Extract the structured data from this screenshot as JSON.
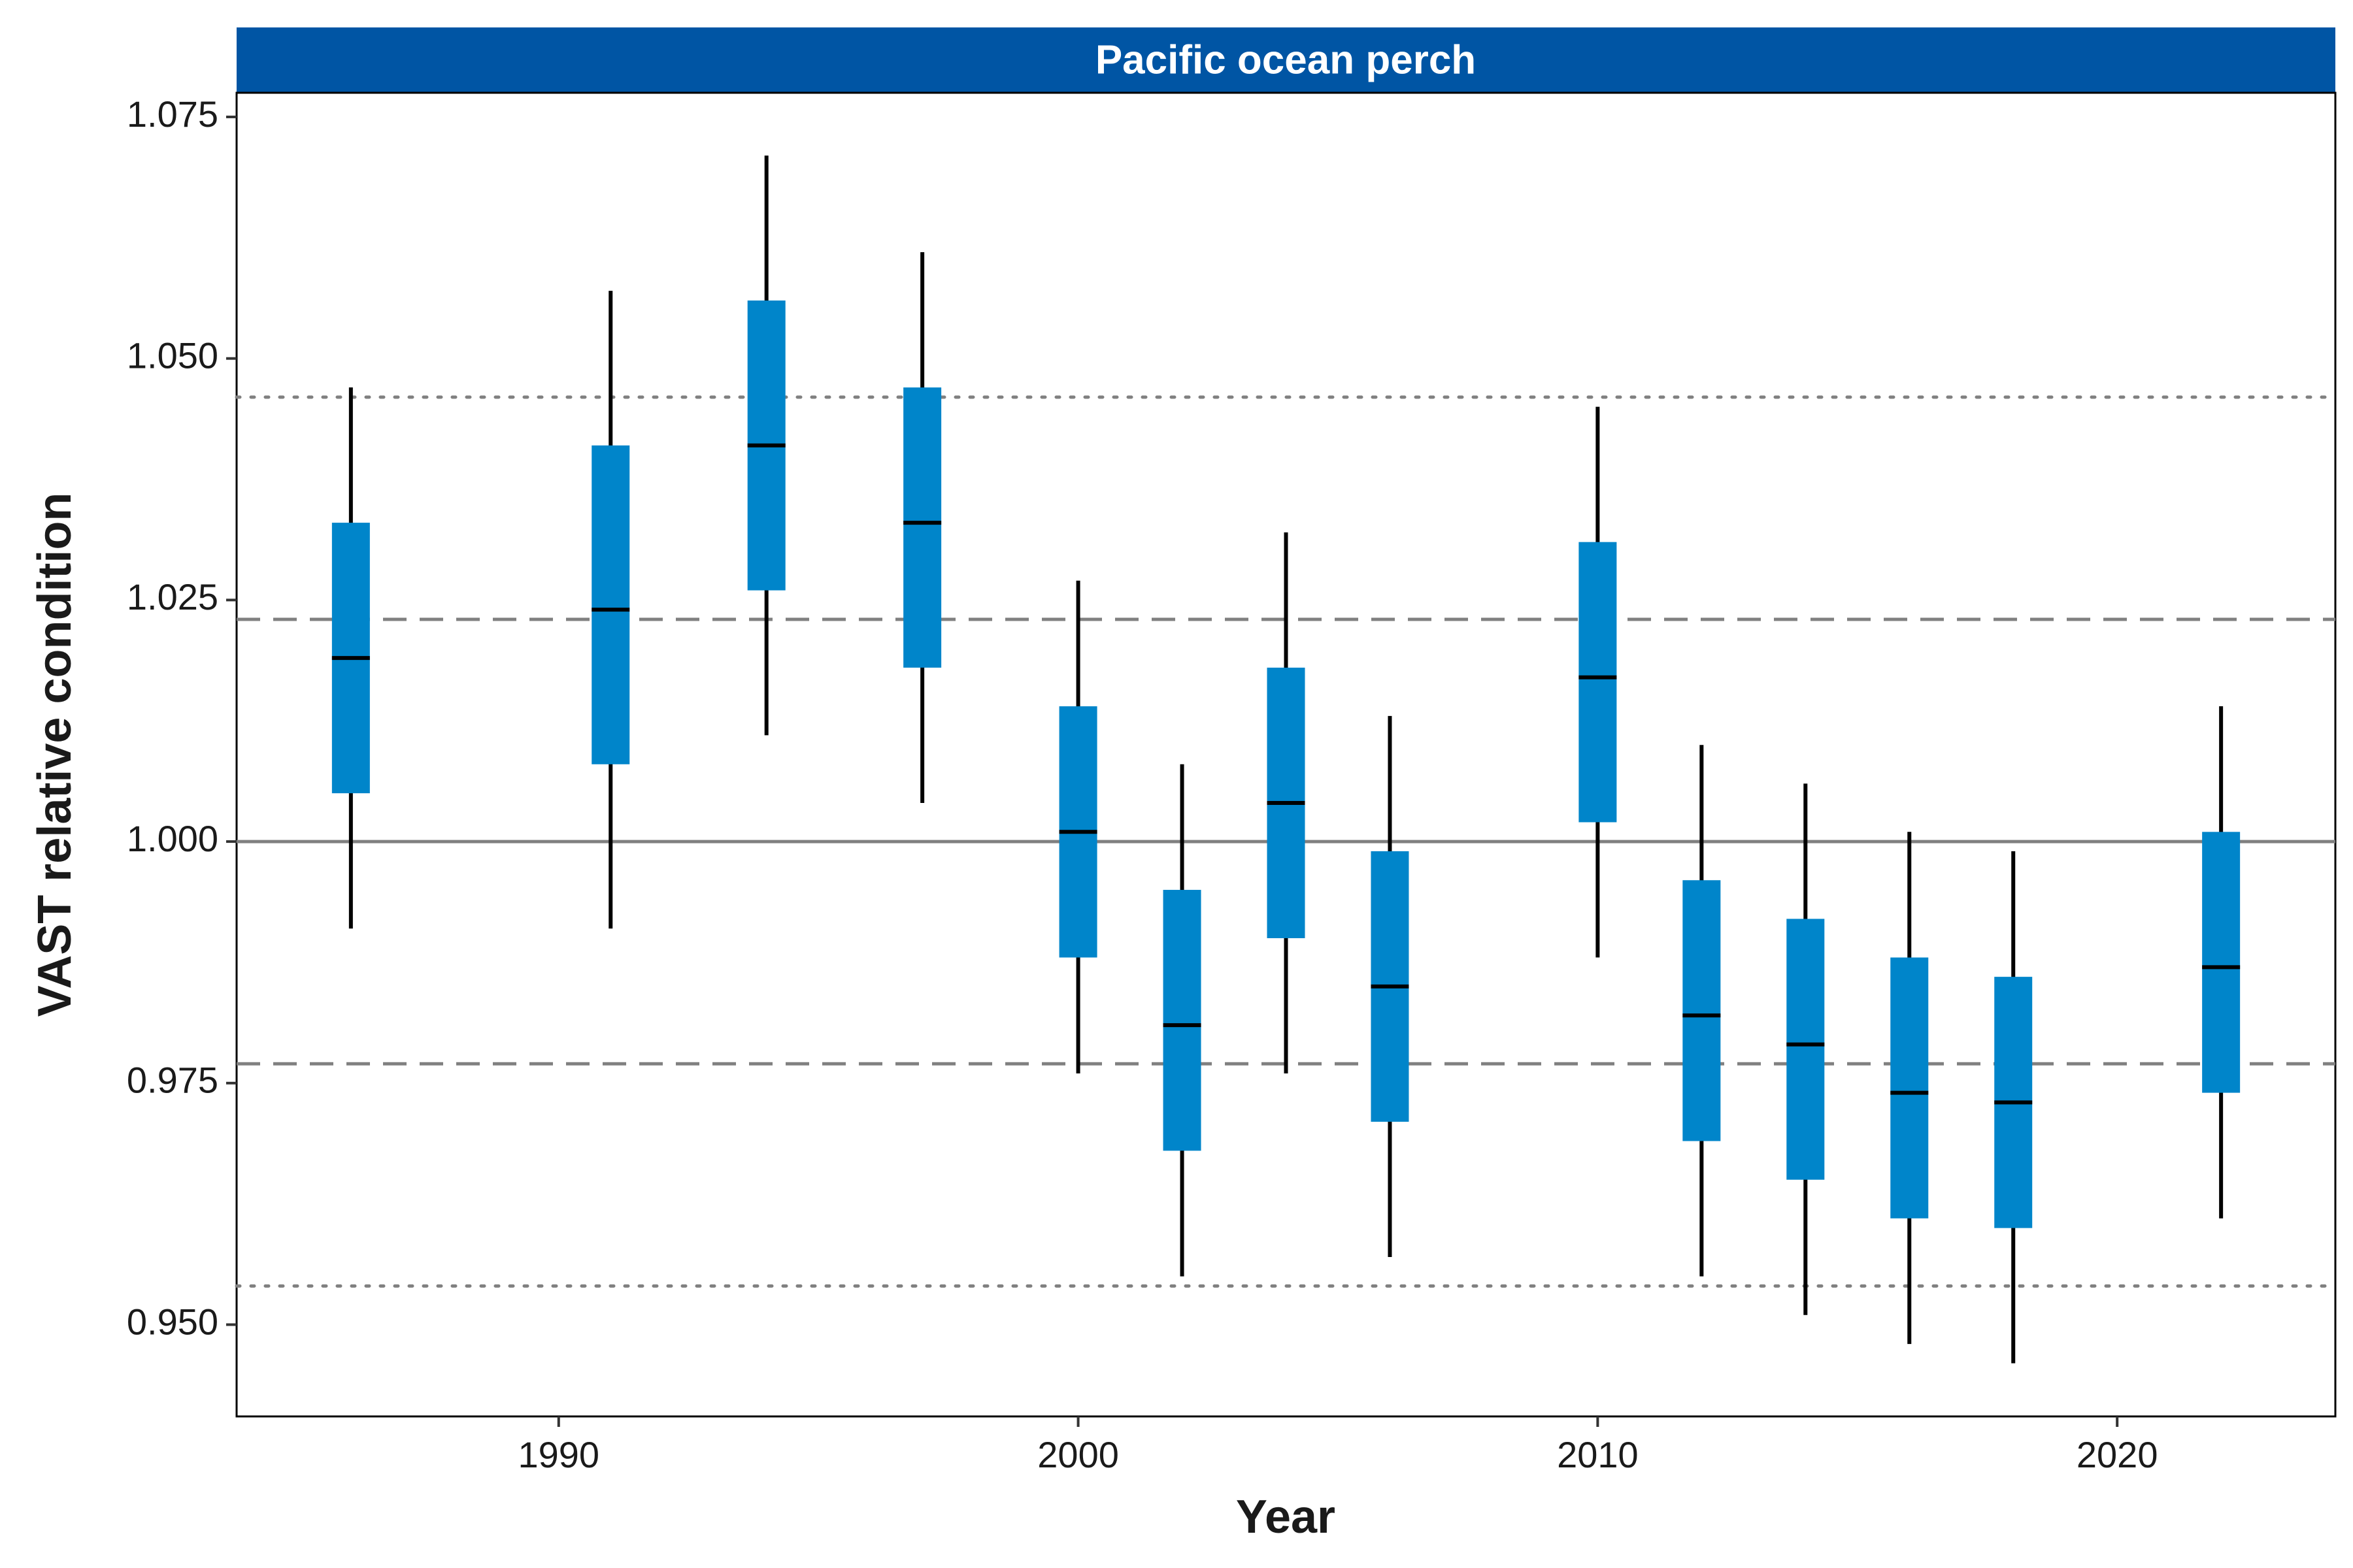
{
  "colors": {
    "strip_fill": "#0055A4",
    "strip_text": "#ffffff",
    "box_fill": "#0085CA",
    "whisker": "#000000",
    "median": "#000000",
    "reference_line": "#808080",
    "panel_border": "#000000"
  },
  "chart_data": {
    "type": "box",
    "panel_title": "Pacific ocean perch",
    "xlabel": "Year",
    "ylabel": "VAST relative condition",
    "xlim": [
      1983.8,
      2024.2
    ],
    "ylim": [
      0.9405,
      1.0775
    ],
    "x_ticks": [
      1990,
      2000,
      2010,
      2020
    ],
    "y_ticks": [
      0.95,
      0.975,
      1.0,
      1.025,
      1.05,
      1.075
    ],
    "x_tick_labels": [
      "1990",
      "2000",
      "2010",
      "2020"
    ],
    "y_tick_labels": [
      "0.950",
      "0.975",
      "1.000",
      "1.025",
      "1.050",
      "1.075"
    ],
    "reference_lines": [
      {
        "y": 1.0,
        "style": "solid"
      },
      {
        "y": 1.023,
        "style": "dashed"
      },
      {
        "y": 0.977,
        "style": "dashed"
      },
      {
        "y": 1.046,
        "style": "dotted"
      },
      {
        "y": 0.954,
        "style": "dotted"
      }
    ],
    "boxes": [
      {
        "year": 1986,
        "low": 0.991,
        "q1": 1.005,
        "median": 1.019,
        "q3": 1.033,
        "high": 1.047
      },
      {
        "year": 1991,
        "low": 0.991,
        "q1": 1.008,
        "median": 1.024,
        "q3": 1.041,
        "high": 1.057
      },
      {
        "year": 1994,
        "low": 1.011,
        "q1": 1.026,
        "median": 1.041,
        "q3": 1.056,
        "high": 1.071
      },
      {
        "year": 1997,
        "low": 1.004,
        "q1": 1.018,
        "median": 1.033,
        "q3": 1.047,
        "high": 1.061
      },
      {
        "year": 2000,
        "low": 0.976,
        "q1": 0.988,
        "median": 1.001,
        "q3": 1.014,
        "high": 1.027
      },
      {
        "year": 2002,
        "low": 0.955,
        "q1": 0.968,
        "median": 0.981,
        "q3": 0.995,
        "high": 1.008
      },
      {
        "year": 2004,
        "low": 0.976,
        "q1": 0.99,
        "median": 1.004,
        "q3": 1.018,
        "high": 1.032
      },
      {
        "year": 2006,
        "low": 0.957,
        "q1": 0.971,
        "median": 0.985,
        "q3": 0.999,
        "high": 1.013
      },
      {
        "year": 2010,
        "low": 0.988,
        "q1": 1.002,
        "median": 1.017,
        "q3": 1.031,
        "high": 1.045
      },
      {
        "year": 2012,
        "low": 0.955,
        "q1": 0.969,
        "median": 0.982,
        "q3": 0.996,
        "high": 1.01
      },
      {
        "year": 2014,
        "low": 0.951,
        "q1": 0.965,
        "median": 0.979,
        "q3": 0.992,
        "high": 1.006
      },
      {
        "year": 2016,
        "low": 0.948,
        "q1": 0.961,
        "median": 0.974,
        "q3": 0.988,
        "high": 1.001
      },
      {
        "year": 2018,
        "low": 0.946,
        "q1": 0.96,
        "median": 0.973,
        "q3": 0.986,
        "high": 0.999
      },
      {
        "year": 2022,
        "low": 0.961,
        "q1": 0.974,
        "median": 0.987,
        "q3": 1.001,
        "high": 1.014
      }
    ]
  }
}
